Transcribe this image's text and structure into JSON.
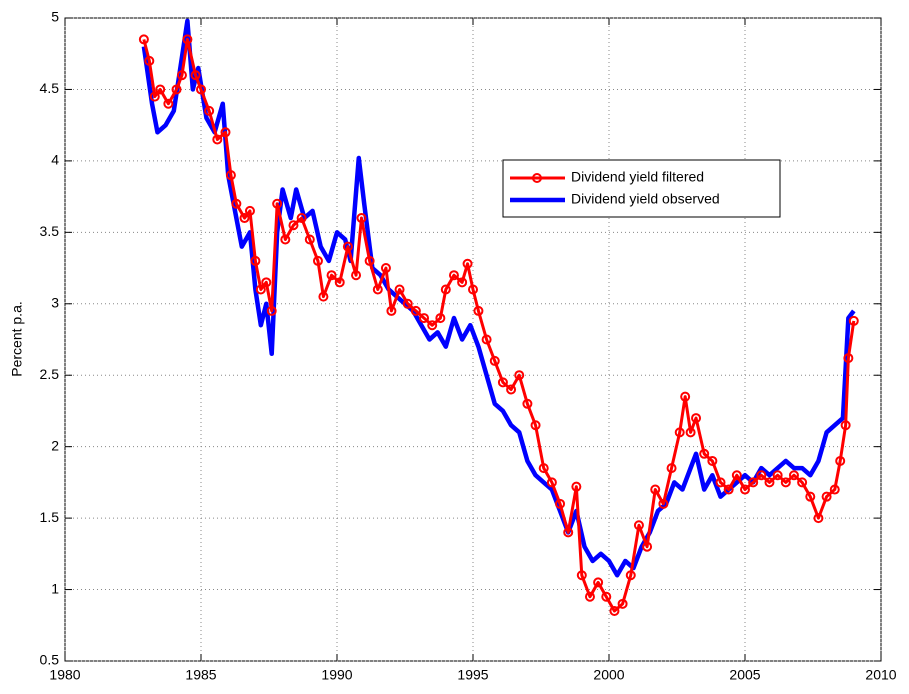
{
  "chart_data": {
    "type": "line",
    "y_label": "Percent p.a.",
    "xlim": [
      1980,
      2010
    ],
    "xticks": [
      1980,
      1985,
      1990,
      1995,
      2000,
      2005,
      2010
    ],
    "ylim": [
      0.5,
      5
    ],
    "yticks": [
      0.5,
      1,
      1.5,
      2,
      2.5,
      3,
      3.5,
      4,
      4.5,
      5
    ],
    "grid": true,
    "series": [
      {
        "name": "Dividend yield filtered",
        "color": "#ff0000",
        "marker": "circle",
        "x": [
          1982.9,
          1983.1,
          1983.3,
          1983.5,
          1983.8,
          1984.1,
          1984.3,
          1984.5,
          1984.8,
          1985.0,
          1985.3,
          1985.6,
          1985.9,
          1986.1,
          1986.3,
          1986.6,
          1986.8,
          1987.0,
          1987.2,
          1987.4,
          1987.6,
          1987.8,
          1988.1,
          1988.4,
          1988.7,
          1989.0,
          1989.3,
          1989.5,
          1989.8,
          1990.1,
          1990.4,
          1990.7,
          1990.9,
          1991.2,
          1991.5,
          1991.8,
          1992.0,
          1992.3,
          1992.6,
          1992.9,
          1993.2,
          1993.5,
          1993.8,
          1994.0,
          1994.3,
          1994.6,
          1994.8,
          1995.0,
          1995.2,
          1995.5,
          1995.8,
          1996.1,
          1996.4,
          1996.7,
          1997.0,
          1997.3,
          1997.6,
          1997.9,
          1998.2,
          1998.5,
          1998.8,
          1999.0,
          1999.3,
          1999.6,
          1999.9,
          2000.2,
          2000.5,
          2000.8,
          2001.1,
          2001.4,
          2001.7,
          2002.0,
          2002.3,
          2002.6,
          2002.8,
          2003.0,
          2003.2,
          2003.5,
          2003.8,
          2004.1,
          2004.4,
          2004.7,
          2005.0,
          2005.3,
          2005.6,
          2005.9,
          2006.2,
          2006.5,
          2006.8,
          2007.1,
          2007.4,
          2007.7,
          2008.0,
          2008.3,
          2008.5,
          2008.7,
          2008.8,
          2009.0
        ],
        "values": [
          4.85,
          4.7,
          4.45,
          4.5,
          4.4,
          4.5,
          4.6,
          4.85,
          4.6,
          4.5,
          4.35,
          4.15,
          4.2,
          3.9,
          3.7,
          3.6,
          3.65,
          3.3,
          3.1,
          3.15,
          2.95,
          3.7,
          3.45,
          3.55,
          3.6,
          3.45,
          3.3,
          3.05,
          3.2,
          3.15,
          3.4,
          3.2,
          3.6,
          3.3,
          3.1,
          3.25,
          2.95,
          3.1,
          3.0,
          2.95,
          2.9,
          2.85,
          2.9,
          3.1,
          3.2,
          3.15,
          3.28,
          3.1,
          2.95,
          2.75,
          2.6,
          2.45,
          2.4,
          2.5,
          2.3,
          2.15,
          1.85,
          1.75,
          1.6,
          1.4,
          1.72,
          1.1,
          0.95,
          1.05,
          0.95,
          0.85,
          0.9,
          1.1,
          1.45,
          1.3,
          1.7,
          1.6,
          1.85,
          2.1,
          2.35,
          2.1,
          2.2,
          1.95,
          1.9,
          1.75,
          1.7,
          1.8,
          1.7,
          1.75,
          1.8,
          1.75,
          1.8,
          1.75,
          1.8,
          1.75,
          1.65,
          1.5,
          1.65,
          1.7,
          1.9,
          2.15,
          2.62,
          2.88
        ]
      },
      {
        "name": "Dividend yield observed",
        "color": "#0000ff",
        "x": [
          1982.9,
          1983.2,
          1983.4,
          1983.7,
          1984.0,
          1984.2,
          1984.5,
          1984.7,
          1984.9,
          1985.2,
          1985.5,
          1985.8,
          1986.0,
          1986.3,
          1986.5,
          1986.8,
          1987.0,
          1987.2,
          1987.4,
          1987.6,
          1987.8,
          1988.0,
          1988.3,
          1988.5,
          1988.8,
          1989.1,
          1989.4,
          1989.7,
          1990.0,
          1990.3,
          1990.5,
          1990.8,
          1991.0,
          1991.3,
          1991.6,
          1991.9,
          1992.2,
          1992.5,
          1992.8,
          1993.1,
          1993.4,
          1993.7,
          1994.0,
          1994.3,
          1994.6,
          1994.9,
          1995.2,
          1995.5,
          1995.8,
          1996.1,
          1996.4,
          1996.7,
          1997.0,
          1997.3,
          1997.6,
          1997.9,
          1998.2,
          1998.5,
          1998.8,
          1999.1,
          1999.4,
          1999.7,
          2000.0,
          2000.3,
          2000.6,
          2000.9,
          2001.2,
          2001.5,
          2001.8,
          2002.1,
          2002.4,
          2002.7,
          2003.0,
          2003.2,
          2003.5,
          2003.8,
          2004.1,
          2004.4,
          2004.7,
          2005.0,
          2005.3,
          2005.6,
          2005.9,
          2006.2,
          2006.5,
          2006.8,
          2007.1,
          2007.4,
          2007.7,
          2008.0,
          2008.3,
          2008.6,
          2008.8,
          2009.0
        ],
        "values": [
          4.8,
          4.4,
          4.2,
          4.25,
          4.35,
          4.6,
          4.98,
          4.5,
          4.65,
          4.3,
          4.2,
          4.4,
          3.9,
          3.6,
          3.4,
          3.5,
          3.1,
          2.85,
          3.0,
          2.65,
          3.5,
          3.8,
          3.6,
          3.8,
          3.6,
          3.65,
          3.4,
          3.3,
          3.5,
          3.45,
          3.3,
          4.02,
          3.7,
          3.25,
          3.2,
          3.1,
          3.05,
          3.0,
          2.95,
          2.85,
          2.75,
          2.8,
          2.7,
          2.9,
          2.75,
          2.85,
          2.7,
          2.5,
          2.3,
          2.25,
          2.15,
          2.1,
          1.9,
          1.8,
          1.75,
          1.7,
          1.55,
          1.4,
          1.55,
          1.3,
          1.2,
          1.25,
          1.2,
          1.1,
          1.2,
          1.15,
          1.3,
          1.4,
          1.55,
          1.6,
          1.75,
          1.7,
          1.85,
          1.95,
          1.7,
          1.8,
          1.65,
          1.7,
          1.75,
          1.8,
          1.75,
          1.85,
          1.8,
          1.85,
          1.9,
          1.85,
          1.85,
          1.8,
          1.9,
          2.1,
          2.15,
          2.2,
          2.9,
          2.95
        ]
      }
    ]
  }
}
